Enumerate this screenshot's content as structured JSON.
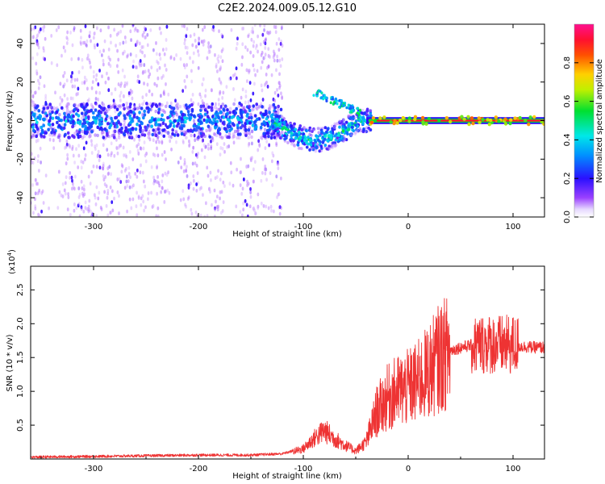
{
  "figure": {
    "title": "C2E2.2024.009.05.12.G10"
  },
  "colors": {
    "snr_line": "#ee3333",
    "spectrogram_background": "#ffffff"
  },
  "chart_data": [
    {
      "type": "heatmap",
      "xlabel": "Height of straight line (km)",
      "ylabel": "Frequency (Hz)",
      "xlim": [
        -360,
        130
      ],
      "ylim": [
        -50,
        50
      ],
      "xticks": [
        -300,
        -200,
        -100,
        0,
        100
      ],
      "yticks": [
        -40,
        -20,
        0,
        20,
        40
      ],
      "grid": false,
      "colorbar": {
        "label": "Normalized spectral amplitude",
        "range": [
          0.0,
          1.0
        ],
        "ticks": [
          "0.0",
          "0.2",
          "0.4",
          "0.6",
          "0.8"
        ],
        "colormap": "rainbow (white-violet-blue-cyan-green-yellow-orange-red-magenta)"
      },
      "features": {
        "scattered_noise_extent_x": [
          -360,
          -120
        ],
        "central_band_frequency_hz": 0,
        "dip_feature_x": [
          -100,
          -30
        ],
        "dip_min_frequency_hz": -12,
        "side_peak_frequency_hz": 15,
        "strong_tone_start_x": -40
      }
    },
    {
      "type": "line",
      "xlabel": "Height of straight line (km)",
      "ylabel": "SNR (10 * v/v)",
      "multiplier_label": "(x10",
      "multiplier_exponent": "4",
      "multiplier_close": ")",
      "xlim": [
        -360,
        130
      ],
      "ylim": [
        0.0,
        2.85
      ],
      "xticks": [
        -300,
        -200,
        -100,
        0,
        100
      ],
      "yticks": [
        "0.5",
        "1.0",
        "1.5",
        "2.0",
        "2.5"
      ],
      "grid": false,
      "series": [
        {
          "x": [
            -360,
            -300,
            -250,
            -200,
            -150,
            -120,
            -100,
            -90,
            -80,
            -70,
            -60,
            -50,
            -40,
            -30,
            -20,
            -10,
            0,
            10,
            20,
            30,
            40,
            50,
            60,
            70,
            80,
            90,
            100,
            110,
            120,
            130
          ],
          "values": [
            0.02,
            0.03,
            0.04,
            0.05,
            0.05,
            0.07,
            0.15,
            0.3,
            0.42,
            0.3,
            0.2,
            0.12,
            0.25,
            0.7,
            0.9,
            1.0,
            1.05,
            1.15,
            1.3,
            1.5,
            1.6,
            1.65,
            1.68,
            1.7,
            1.7,
            1.68,
            1.68,
            1.66,
            1.65,
            1.65
          ]
        }
      ]
    }
  ]
}
